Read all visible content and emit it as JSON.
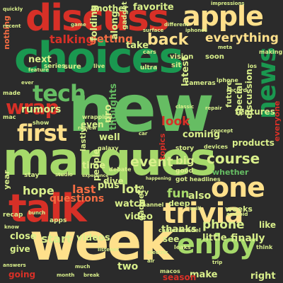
{
  "palette": {
    "dark_red": "#a50026",
    "red": "#d73027",
    "orange": "#f46d43",
    "light_orange": "#fdae61",
    "pale_yellow": "#fee08b",
    "pale_green": "#d9ef8b",
    "light_green": "#a6d96a",
    "green": "#66bd63",
    "dark_green": "#1a9850",
    "deep_green": "#006837",
    "background": "#2b2b2b"
  },
  "words": [
    {
      "text": "new",
      "color": "green"
    },
    {
      "text": "marques",
      "color": "light_green"
    },
    {
      "text": "choices",
      "color": "dark_green"
    },
    {
      "text": "week",
      "color": "pale_yellow"
    },
    {
      "text": "talk",
      "color": "red"
    },
    {
      "text": "discuss",
      "color": "red"
    },
    {
      "text": "apple",
      "color": "pale_yellow"
    },
    {
      "text": "trivia",
      "color": "pale_yellow"
    },
    {
      "text": "enjoy",
      "color": "light_green"
    },
    {
      "text": "first",
      "color": "pale_yellow"
    },
    {
      "text": "tech",
      "color": "green"
    },
    {
      "text": "one",
      "color": "pale_yellow"
    },
    {
      "text": "news",
      "color": "dark_green"
    },
    {
      "text": "wrap",
      "color": "red"
    },
    {
      "text": "back",
      "color": "pale_yellow"
    },
    {
      "text": "everything",
      "color": "pale_yellow"
    },
    {
      "text": "talking",
      "color": "red"
    },
    {
      "text": "getting",
      "color": "orange"
    },
    {
      "text": "favorite",
      "color": "pale_green"
    },
    {
      "text": "another",
      "color": "pale_green"
    },
    {
      "text": "folding",
      "color": "pale_green"
    },
    {
      "text": "along",
      "color": "pale_green"
    },
    {
      "text": "gadget",
      "color": "pale_green"
    },
    {
      "text": "hope",
      "color": "pale_green"
    },
    {
      "text": "questions",
      "color": "orange"
    },
    {
      "text": "last",
      "color": "orange"
    },
    {
      "text": "plus",
      "color": "pale_green"
    },
    {
      "text": "lot",
      "color": "pale_green"
    },
    {
      "text": "event",
      "color": "pale_green"
    },
    {
      "text": "course",
      "color": "pale_green"
    },
    {
      "text": "fun",
      "color": "light_green"
    },
    {
      "text": "also",
      "color": "pale_green"
    },
    {
      "text": "phone",
      "color": "pale_green"
    },
    {
      "text": "finally",
      "color": "pale_green"
    },
    {
      "text": "like",
      "color": "pale_green"
    },
    {
      "text": "close",
      "color": "pale_green"
    },
    {
      "text": "start",
      "color": "pale_green"
    },
    {
      "text": "little",
      "color": "pale_green"
    },
    {
      "text": "videos",
      "color": "pale_green"
    },
    {
      "text": "video",
      "color": "pale_green"
    },
    {
      "text": "watch",
      "color": "pale_green"
    },
    {
      "text": "two",
      "color": "pale_green"
    },
    {
      "text": "make",
      "color": "pale_green"
    },
    {
      "text": "see",
      "color": "pale_green"
    },
    {
      "text": "weeks",
      "color": "pale_green"
    },
    {
      "text": "thanks",
      "color": "pale_green"
    },
    {
      "text": "time",
      "color": "pale_green"
    },
    {
      "text": "well",
      "color": "pale_green"
    },
    {
      "text": "pro",
      "color": "pale_green"
    },
    {
      "text": "take",
      "color": "pale_green"
    },
    {
      "text": "features",
      "color": "pale_green"
    },
    {
      "text": "products",
      "color": "pale_green"
    },
    {
      "text": "coming",
      "color": "pale_green"
    },
    {
      "text": "thoughts",
      "color": "green"
    },
    {
      "text": "rumors",
      "color": "pale_green"
    },
    {
      "text": "look",
      "color": "red"
    },
    {
      "text": "big",
      "color": "pale_green"
    },
    {
      "text": "right",
      "color": "pale_green"
    },
    {
      "text": "discussion",
      "color": "pale_green"
    },
    {
      "text": "special",
      "color": "pale_green"
    },
    {
      "text": "future",
      "color": "pale_green"
    },
    {
      "text": "latest",
      "color": "pale_green"
    },
    {
      "text": "next",
      "color": "pale_green"
    },
    {
      "text": "even",
      "color": "pale_green"
    },
    {
      "text": "dive",
      "color": "pale_green"
    },
    {
      "text": "deep",
      "color": "pale_green"
    },
    {
      "text": "whether",
      "color": "green"
    },
    {
      "text": "gadgets",
      "color": "pale_green"
    },
    {
      "text": "going",
      "color": "red"
    },
    {
      "text": "people",
      "color": "pale_green"
    },
    {
      "text": "topics",
      "color": "red"
    },
    {
      "text": "season",
      "color": "red"
    },
    {
      "text": "lastly",
      "color": "pale_green"
    },
    {
      "text": "everyone",
      "color": "red"
    },
    {
      "text": "nothing",
      "color": "orange"
    },
    {
      "text": "give",
      "color": "pale_green"
    },
    {
      "text": "year",
      "color": "pale_green"
    },
    {
      "text": "series",
      "color": "pale_green"
    },
    {
      "text": "sure",
      "color": "pale_green"
    },
    {
      "text": "ultra",
      "color": "pale_green"
    },
    {
      "text": "vision",
      "color": "pale_green"
    },
    {
      "text": "soon",
      "color": "pale_green"
    },
    {
      "text": "sit",
      "color": "pale_green"
    },
    {
      "text": "try",
      "color": "pale_green"
    },
    {
      "text": "good",
      "color": "pale_green"
    },
    {
      "text": "got",
      "color": "pale_green"
    },
    {
      "text": "story",
      "color": "pale_green"
    },
    {
      "text": "devices",
      "color": "pale_green"
    },
    {
      "text": "cameras",
      "color": "pale_green"
    },
    {
      "text": "headlines",
      "color": "pale_green"
    },
    {
      "text": "recap",
      "color": "pale_green"
    },
    {
      "text": "stay",
      "color": "pale_green"
    },
    {
      "text": "apps",
      "color": "pale_green"
    },
    {
      "text": "ios",
      "color": "pale_green"
    },
    {
      "text": "macos",
      "color": "pale_green"
    },
    {
      "text": "iphone",
      "color": "pale_green"
    },
    {
      "text": "iphones",
      "color": "pale_green"
    },
    {
      "text": "galaxy",
      "color": "pale_green"
    },
    {
      "text": "mac",
      "color": "pale_green"
    },
    {
      "text": "debate",
      "color": "pale_green"
    },
    {
      "text": "made",
      "color": "pale_green"
    },
    {
      "text": "show",
      "color": "pale_green"
    },
    {
      "text": "ever",
      "color": "pale_green"
    },
    {
      "text": "channel",
      "color": "pale_green"
    },
    {
      "text": "listener",
      "color": "pale_green"
    },
    {
      "text": "camera",
      "color": "pale_green"
    },
    {
      "text": "model",
      "color": "pale_green"
    },
    {
      "text": "leaks",
      "color": "pale_green"
    },
    {
      "text": "think",
      "color": "pale_green"
    },
    {
      "text": "record",
      "color": "pale_green"
    },
    {
      "text": "making",
      "color": "pale_green"
    },
    {
      "text": "impressions",
      "color": "pale_green"
    },
    {
      "text": "surface",
      "color": "pale_green"
    },
    {
      "text": "different",
      "color": "pale_green"
    },
    {
      "text": "game",
      "color": "pale_green"
    },
    {
      "text": "meta",
      "color": "pale_green"
    },
    {
      "text": "concept",
      "color": "pale_green"
    },
    {
      "text": "studio",
      "color": "pale_green"
    },
    {
      "text": "bunch",
      "color": "pale_green"
    },
    {
      "text": "answers",
      "color": "pale_green"
    },
    {
      "text": "trip",
      "color": "pale_green"
    },
    {
      "text": "live",
      "color": "pale_green"
    },
    {
      "text": "classic",
      "color": "pale_green"
    },
    {
      "text": "review",
      "color": "pale_green"
    },
    {
      "text": "car",
      "color": "pale_green"
    },
    {
      "text": "repair",
      "color": "pale_green"
    },
    {
      "text": "feature",
      "color": "pale_green"
    },
    {
      "text": "wrapping",
      "color": "pale_green"
    },
    {
      "text": "quickly",
      "color": "pale_green"
    },
    {
      "text": "recent",
      "color": "pale_green"
    },
    {
      "text": "know",
      "color": "pale_green"
    },
    {
      "text": "spill",
      "color": "pale_green"
    },
    {
      "text": "experience",
      "color": "pale_green"
    },
    {
      "text": "happening",
      "color": "pale_green"
    },
    {
      "text": "break",
      "color": "pale_green"
    },
    {
      "text": "month",
      "color": "pale_green"
    },
    {
      "text": "air",
      "color": "pale_green"
    },
    {
      "text": "cars",
      "color": "pale_green"
    },
    {
      "text": "android",
      "color": "pale_green"
    },
    {
      "text": "electric",
      "color": "pale_green"
    },
    {
      "text": "much",
      "color": "pale_green"
    }
  ]
}
